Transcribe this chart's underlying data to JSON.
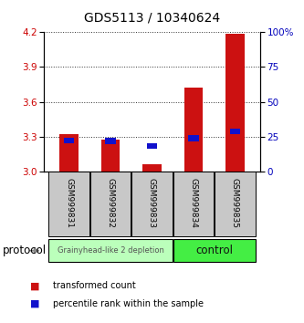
{
  "title": "GDS5113 / 10340624",
  "samples": [
    "GSM999831",
    "GSM999832",
    "GSM999833",
    "GSM999834",
    "GSM999835"
  ],
  "red_bar_bottom": 3.0,
  "red_bar_top": [
    3.32,
    3.27,
    3.06,
    3.72,
    4.19
  ],
  "blue_dot_y": [
    3.265,
    3.26,
    3.22,
    3.285,
    3.345
  ],
  "ylim": [
    3.0,
    4.2
  ],
  "y_ticks_left": [
    3.0,
    3.3,
    3.6,
    3.9,
    4.2
  ],
  "y_ticks_right": [
    0,
    25,
    50,
    75,
    100
  ],
  "y_ticks_right_labels": [
    "0",
    "25",
    "50",
    "75",
    "100%"
  ],
  "left_color": "#cc0000",
  "right_color": "#0000bb",
  "bar_width": 0.45,
  "group1_label": "Grainyhead-like 2 depletion",
  "group2_label": "control",
  "group1_color": "#bbffbb",
  "group2_color": "#44ee44",
  "protocol_label": "protocol",
  "legend_red_label": "transformed count",
  "legend_blue_label": "percentile rank within the sample",
  "bar_color_red": "#cc1111",
  "bar_color_blue": "#1111cc",
  "xlabel_gray_bg": "#c8c8c8",
  "title_fontsize": 10
}
